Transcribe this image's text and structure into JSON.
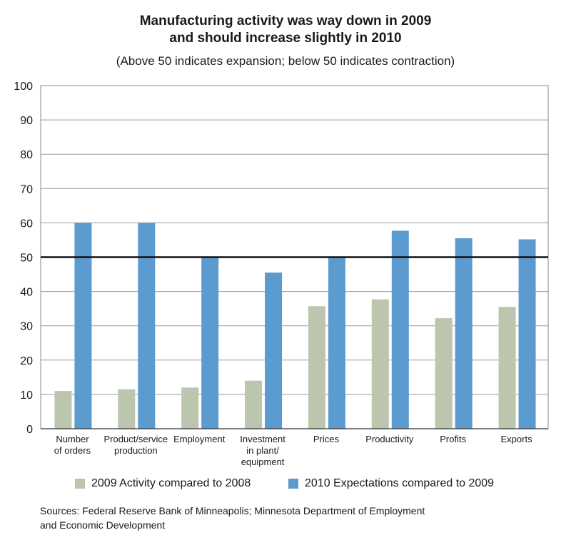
{
  "title_line1": "Manufacturing activity was way down in 2009",
  "title_line2": "and should increase slightly in 2010",
  "subtitle": "(Above 50 indicates expansion; below 50 indicates contraction)",
  "source_line1": "Sources: Federal Reserve Bank of Minneapolis; Minnesota Department of Employment",
  "source_line2": "and Economic Development",
  "colors": {
    "series_2009": "#bcc5ae",
    "series_2010": "#5b9bd0",
    "grid": "#444444"
  },
  "chart_data": {
    "type": "bar",
    "categories": [
      [
        "Number",
        "of orders"
      ],
      [
        "Product/service",
        "production"
      ],
      [
        "Employment"
      ],
      [
        "Investment",
        "in plant/",
        "equipment"
      ],
      [
        "Prices"
      ],
      [
        "Productivity"
      ],
      [
        "Profits"
      ],
      [
        "Exports"
      ]
    ],
    "series": [
      {
        "name": "2009 Activity compared to 2008",
        "values": [
          11,
          11.5,
          12,
          14,
          35.7,
          37.7,
          32.2,
          35.5
        ]
      },
      {
        "name": "2010 Expectations compared to 2009",
        "values": [
          60,
          60,
          50,
          45.5,
          50,
          57.7,
          55.5,
          55.2
        ]
      }
    ],
    "ylim": [
      0,
      100
    ],
    "yticks": [
      0,
      10,
      20,
      30,
      40,
      50,
      60,
      70,
      80,
      90,
      100
    ],
    "reference_line": 50,
    "grid": true,
    "legend_position": "bottom"
  }
}
